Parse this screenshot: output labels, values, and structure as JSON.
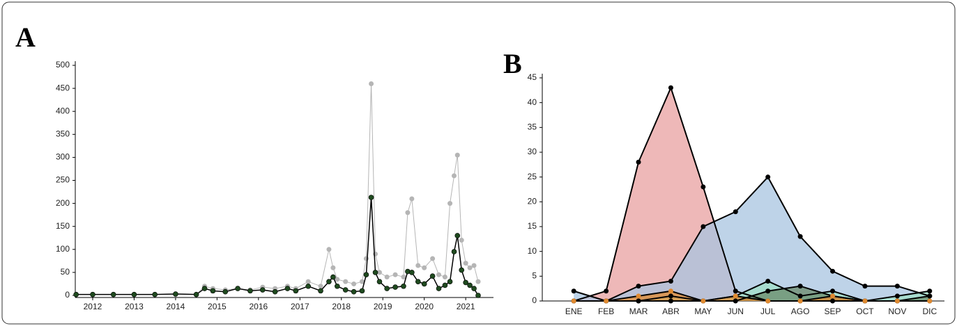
{
  "chart_data": [
    {
      "type": "line",
      "label": "A",
      "x": [
        2011.6,
        2012.0,
        2012.5,
        2013.0,
        2013.5,
        2014.0,
        2014.5,
        2014.7,
        2014.9,
        2015.2,
        2015.5,
        2015.8,
        2016.1,
        2016.4,
        2016.7,
        2016.9,
        2017.2,
        2017.5,
        2017.7,
        2017.8,
        2017.9,
        2018.1,
        2018.3,
        2018.5,
        2018.6,
        2018.72,
        2018.82,
        2018.92,
        2019.1,
        2019.3,
        2019.5,
        2019.6,
        2019.7,
        2019.85,
        2020.0,
        2020.2,
        2020.35,
        2020.5,
        2020.62,
        2020.72,
        2020.8,
        2020.9,
        2021.0,
        2021.1,
        2021.2,
        2021.3
      ],
      "series": [
        {
          "color": "#b5b5b5",
          "values": [
            2,
            2,
            2,
            2,
            2,
            3,
            2,
            20,
            15,
            12,
            15,
            12,
            18,
            15,
            20,
            15,
            30,
            20,
            100,
            60,
            35,
            30,
            25,
            30,
            80,
            460,
            90,
            50,
            40,
            45,
            40,
            180,
            210,
            65,
            60,
            80,
            45,
            40,
            200,
            260,
            305,
            120,
            70,
            60,
            65,
            30
          ]
        },
        {
          "color": "#1f4a1f",
          "values": [
            2,
            2,
            2,
            2,
            2,
            3,
            2,
            15,
            10,
            8,
            15,
            10,
            12,
            8,
            15,
            10,
            20,
            10,
            30,
            40,
            20,
            12,
            8,
            10,
            45,
            213,
            50,
            30,
            15,
            18,
            20,
            52,
            50,
            30,
            25,
            42,
            15,
            22,
            30,
            95,
            130,
            55,
            28,
            22,
            15,
            0
          ]
        }
      ],
      "xlim": [
        2011.58,
        2021.67
      ],
      "xticks": [
        2012,
        2013,
        2014,
        2015,
        2016,
        2017,
        2018,
        2019,
        2020,
        2021
      ],
      "ylim": [
        0,
        500
      ],
      "yticks": [
        0,
        50,
        100,
        150,
        200,
        250,
        300,
        350,
        400,
        450,
        500
      ]
    },
    {
      "type": "area",
      "label": "B",
      "categories": [
        "ENE",
        "FEB",
        "MAR",
        "ABR",
        "MAY",
        "JUN",
        "JUL",
        "AGO",
        "SEP",
        "OCT",
        "NOV",
        "DIC"
      ],
      "line_color": "#000000",
      "series": [
        {
          "color": "#e8a0a0",
          "values": [
            0,
            2,
            28,
            43,
            23,
            2,
            0,
            0,
            0,
            0,
            0,
            0
          ]
        },
        {
          "color": "#a8c4e0",
          "values": [
            2,
            0,
            3,
            4,
            15,
            18,
            25,
            13,
            6,
            3,
            3,
            1
          ]
        },
        {
          "color": "#a0e0c8",
          "values": [
            0,
            0,
            0,
            1,
            0,
            1,
            4,
            1,
            2,
            0,
            1,
            2
          ]
        },
        {
          "color": "#6a8a6a",
          "values": [
            0,
            0,
            0,
            0,
            0,
            0,
            2,
            3,
            1,
            0,
            0,
            1
          ]
        },
        {
          "color": "#e08a30",
          "values": [
            0,
            0,
            1,
            2,
            0,
            1,
            0,
            0,
            1,
            0,
            0,
            0
          ]
        }
      ],
      "ylim": [
        0,
        45
      ],
      "yticks": [
        0,
        5,
        10,
        15,
        20,
        25,
        30,
        35,
        40,
        45
      ]
    }
  ]
}
